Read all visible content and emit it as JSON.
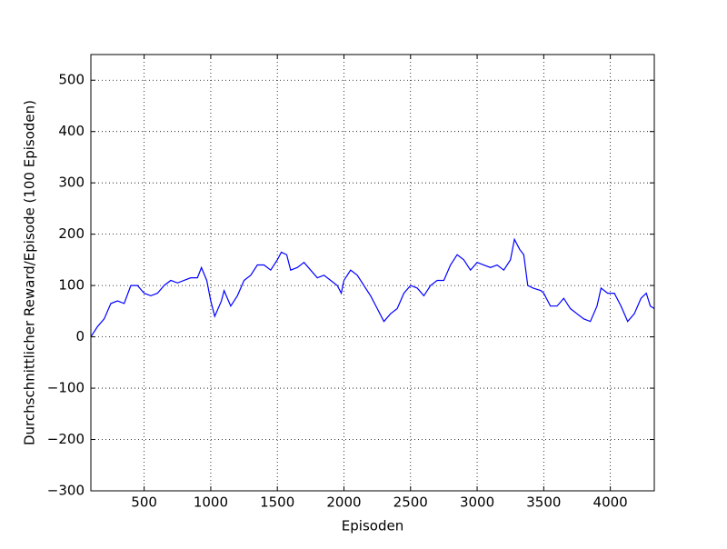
{
  "chart_data": {
    "type": "line",
    "x_label": "Episoden",
    "y_label": "Durchschnittlicher Reward/Episode (100 Episoden)",
    "x": [
      100,
      150,
      200,
      250,
      300,
      350,
      400,
      450,
      500,
      550,
      600,
      650,
      700,
      750,
      800,
      850,
      900,
      930,
      970,
      1000,
      1030,
      1080,
      1100,
      1150,
      1200,
      1250,
      1300,
      1350,
      1400,
      1450,
      1500,
      1530,
      1570,
      1600,
      1650,
      1700,
      1750,
      1800,
      1850,
      1900,
      1950,
      1980,
      2000,
      2050,
      2100,
      2150,
      2200,
      2250,
      2300,
      2350,
      2400,
      2450,
      2500,
      2550,
      2600,
      2650,
      2700,
      2750,
      2800,
      2850,
      2900,
      2950,
      3000,
      3050,
      3100,
      3150,
      3200,
      3250,
      3280,
      3320,
      3350,
      3380,
      3420,
      3480,
      3500,
      3550,
      3600,
      3650,
      3700,
      3750,
      3800,
      3850,
      3900,
      3930,
      3980,
      4030,
      4080,
      4130,
      4180,
      4230,
      4270,
      4300,
      4330
    ],
    "series": [
      {
        "name": "Reward",
        "color": "#0000ff",
        "values": [
          0,
          20,
          35,
          65,
          70,
          65,
          100,
          100,
          85,
          80,
          85,
          100,
          110,
          105,
          110,
          115,
          115,
          135,
          110,
          70,
          40,
          70,
          90,
          60,
          80,
          110,
          120,
          140,
          140,
          130,
          150,
          165,
          160,
          130,
          135,
          145,
          130,
          115,
          120,
          110,
          100,
          85,
          110,
          130,
          120,
          100,
          80,
          55,
          30,
          45,
          55,
          85,
          100,
          95,
          80,
          100,
          110,
          110,
          140,
          160,
          150,
          130,
          145,
          140,
          135,
          140,
          130,
          150,
          190,
          170,
          160,
          100,
          95,
          90,
          85,
          60,
          60,
          75,
          55,
          45,
          35,
          30,
          60,
          95,
          85,
          85,
          60,
          30,
          45,
          75,
          85,
          60,
          55
        ]
      }
    ],
    "xlim": [
      100,
      4330
    ],
    "ylim": [
      -300,
      550
    ],
    "xticks": [
      500,
      1000,
      1500,
      2000,
      2500,
      3000,
      3500,
      4000
    ],
    "yticks": [
      {
        "value": -300,
        "label": "−300"
      },
      {
        "value": -200,
        "label": "−200"
      },
      {
        "value": -100,
        "label": "−100"
      },
      0,
      100,
      200,
      300,
      400,
      500
    ],
    "grid": true
  }
}
